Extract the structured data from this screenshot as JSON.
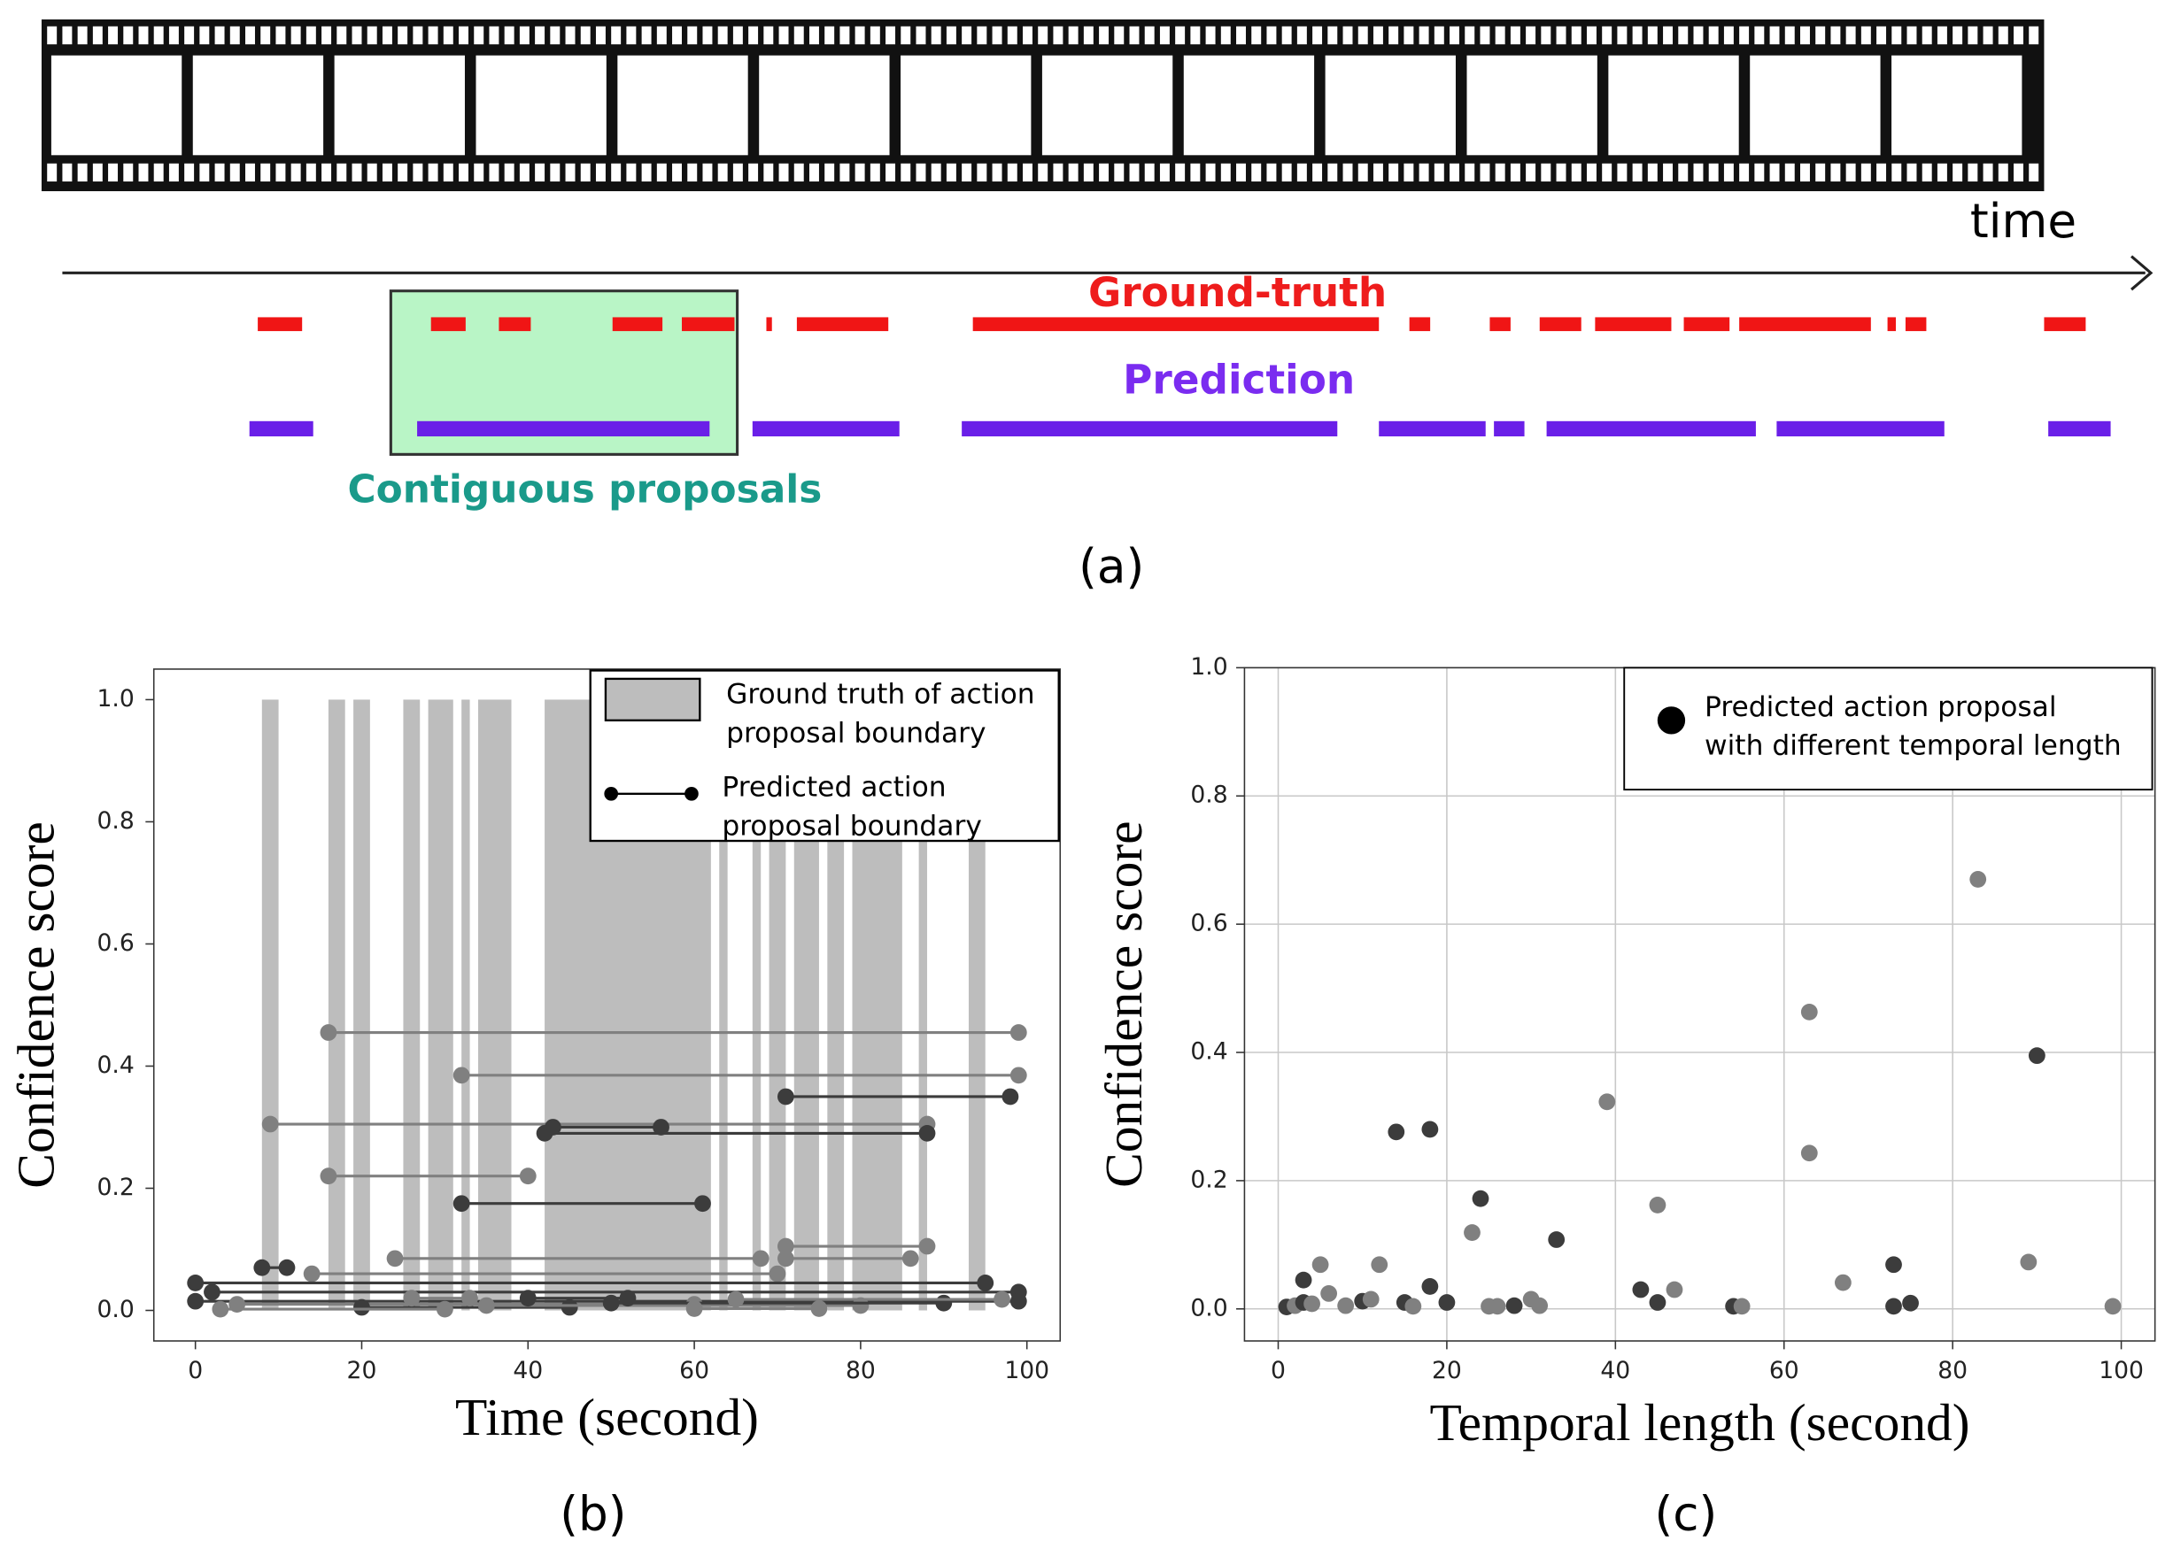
{
  "diagram": {
    "time_label": "time",
    "ground_truth_label": "Ground-truth",
    "prediction_label": "Prediction",
    "proposal_label": "Contiguous proposals",
    "caption": "(a)"
  },
  "chart_data": [
    {
      "type": "range",
      "caption": "(b)",
      "xlabel": "Time (second)",
      "ylabel": "Confidence score",
      "xlim": [
        -5,
        104
      ],
      "ylim": [
        -0.05,
        1.05
      ],
      "grid": false,
      "xticks": [
        0,
        20,
        40,
        60,
        80,
        100
      ],
      "yticks": [
        {
          "value": 0,
          "label": "0.0"
        },
        0.2,
        0.4,
        0.6,
        0.8,
        {
          "value": 1,
          "label": "1.0"
        }
      ],
      "ground_truth": {
        "name": [
          "Ground truth of action",
          "proposal boundary"
        ],
        "color": "#bdbdbd",
        "value": 1.0,
        "intervals": [
          [
            8,
            10
          ],
          [
            16,
            18
          ],
          [
            19,
            21
          ],
          [
            25,
            27
          ],
          [
            28,
            31
          ],
          [
            32,
            33
          ],
          [
            34,
            38
          ],
          [
            42,
            62
          ],
          [
            63,
            64
          ],
          [
            67,
            68
          ],
          [
            69,
            71
          ],
          [
            72,
            75
          ],
          [
            76,
            78
          ],
          [
            79,
            85
          ],
          [
            87,
            88
          ],
          [
            93,
            95
          ]
        ]
      },
      "proposals": {
        "name": [
          "Predicted action",
          "proposal boundary"
        ],
        "starts": [
          16,
          32,
          71,
          9,
          43,
          42,
          16,
          32,
          71,
          71,
          24,
          8,
          14,
          0,
          2,
          0,
          5,
          20,
          26,
          35,
          50,
          60,
          40,
          3,
          65
        ],
        "ends": [
          99,
          99,
          98,
          88,
          56,
          88,
          40,
          61,
          88,
          86,
          68,
          11,
          70,
          95,
          99,
          99,
          60,
          45,
          33,
          80,
          90,
          75,
          52,
          30,
          97
        ],
        "values": [
          0.455,
          0.385,
          0.35,
          0.305,
          0.3,
          0.29,
          0.22,
          0.175,
          0.105,
          0.085,
          0.085,
          0.07,
          0.06,
          0.045,
          0.03,
          0.015,
          0.01,
          0.005,
          0.02,
          0.008,
          0.012,
          0.003,
          0.02,
          0.002,
          0.018
        ],
        "colors": [
          "#808080",
          "#808080",
          "#3c3c3c",
          "#808080",
          "#3c3c3c",
          "#3c3c3c",
          "#808080",
          "#3c3c3c",
          "#808080",
          "#808080",
          "#808080",
          "#3c3c3c",
          "#808080",
          "#3c3c3c",
          "#3c3c3c",
          "#3c3c3c",
          "#808080",
          "#3c3c3c",
          "#808080",
          "#808080",
          "#3c3c3c",
          "#808080",
          "#3c3c3c",
          "#808080",
          "#808080"
        ]
      }
    },
    {
      "type": "scatter",
      "caption": "(c)",
      "xlabel": "Temporal length (second)",
      "ylabel": "Confidence score",
      "xlim": [
        -4,
        104
      ],
      "ylim": [
        -0.05,
        1.0
      ],
      "grid": true,
      "xticks": [
        0,
        20,
        40,
        60,
        80,
        100
      ],
      "yticks": [
        {
          "value": 0,
          "label": "0.0"
        },
        0.2,
        0.4,
        0.6,
        0.8,
        {
          "value": 1,
          "label": "1.0"
        }
      ],
      "series": [
        {
          "name": [
            "Predicted action proposal",
            "with different temporal length"
          ],
          "color": "#000000",
          "x": [
            83,
            90,
            63,
            63,
            39,
            14,
            18,
            24,
            45,
            23,
            33,
            89,
            73,
            5,
            12,
            3,
            67,
            18,
            47,
            43,
            6,
            75,
            73,
            99,
            54,
            55,
            1,
            2,
            3,
            4,
            8,
            10,
            11,
            15,
            16,
            20,
            25,
            26,
            28,
            30,
            31,
            45
          ],
          "values": [
            0.67,
            0.395,
            0.463,
            0.243,
            0.323,
            0.276,
            0.28,
            0.172,
            0.162,
            0.119,
            0.108,
            0.073,
            0.069,
            0.069,
            0.069,
            0.045,
            0.041,
            0.035,
            0.03,
            0.03,
            0.024,
            0.009,
            0.004,
            0.004,
            0.004,
            0.004,
            0.003,
            0.005,
            0.01,
            0.008,
            0.005,
            0.012,
            0.015,
            0.01,
            0.004,
            0.01,
            0.004,
            0.004,
            0.005,
            0.015,
            0.005,
            0.01
          ],
          "colors": [
            "#808080",
            "#3c3c3c",
            "#808080",
            "#808080",
            "#808080",
            "#3c3c3c",
            "#3c3c3c",
            "#3c3c3c",
            "#808080",
            "#808080",
            "#3c3c3c",
            "#808080",
            "#3c3c3c",
            "#808080",
            "#808080",
            "#3c3c3c",
            "#808080",
            "#3c3c3c",
            "#808080",
            "#3c3c3c",
            "#808080",
            "#3c3c3c",
            "#3c3c3c",
            "#808080",
            "#3c3c3c",
            "#808080",
            "#3c3c3c",
            "#808080",
            "#3c3c3c",
            "#808080",
            "#808080",
            "#3c3c3c",
            "#808080",
            "#3c3c3c",
            "#808080",
            "#3c3c3c",
            "#808080",
            "#808080",
            "#3c3c3c",
            "#808080",
            "#808080",
            "#3c3c3c"
          ]
        }
      ]
    }
  ]
}
